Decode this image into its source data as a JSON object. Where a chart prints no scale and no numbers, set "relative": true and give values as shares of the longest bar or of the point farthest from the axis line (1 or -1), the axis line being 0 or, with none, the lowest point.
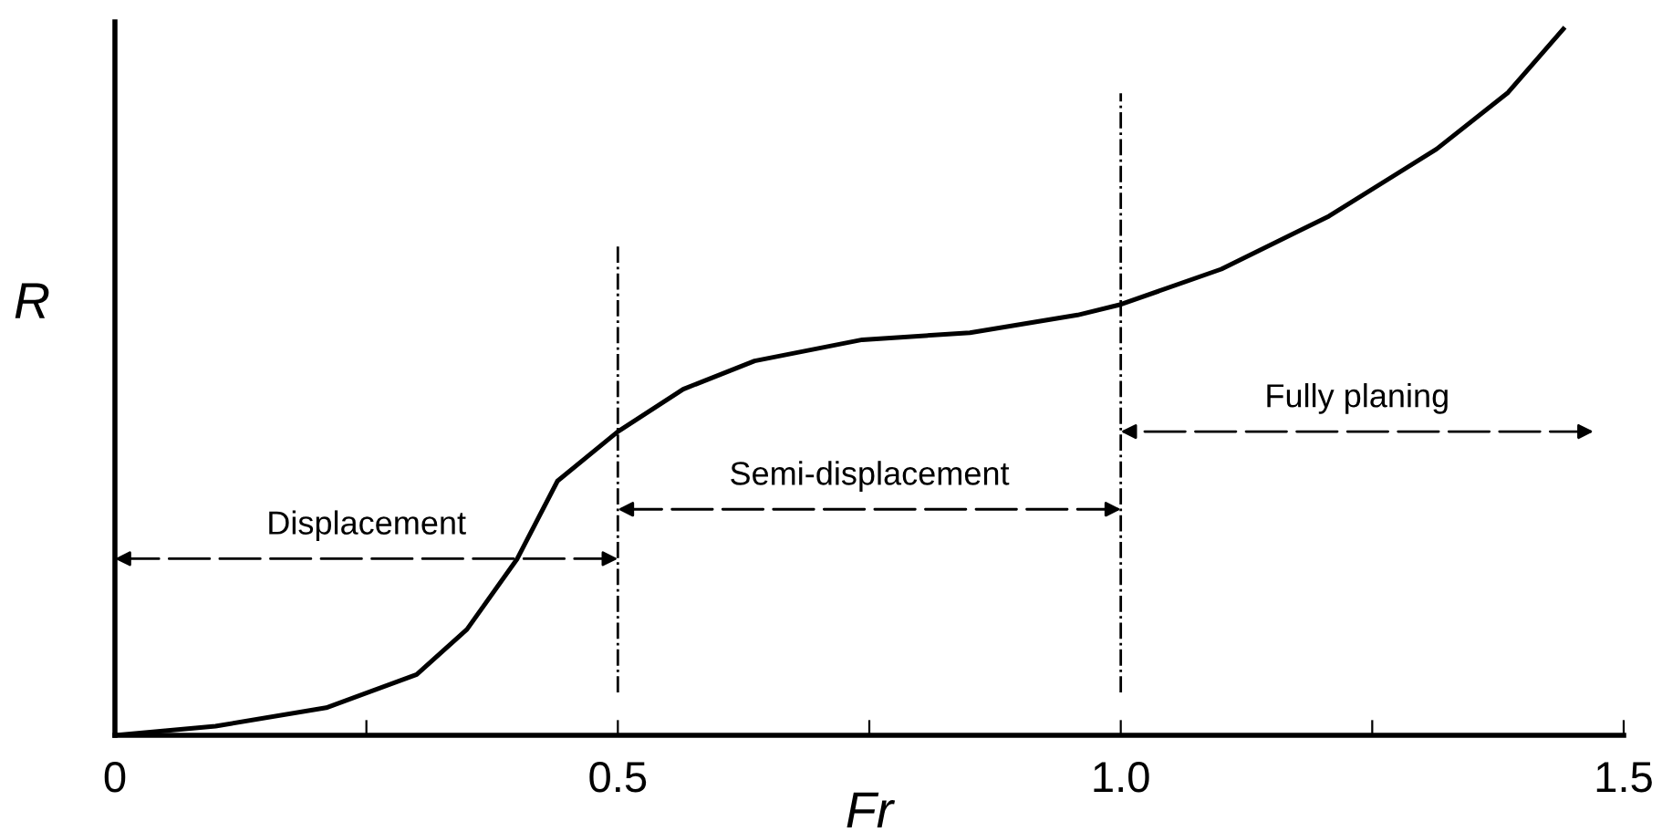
{
  "chart_data": {
    "type": "line",
    "relative": true,
    "xlabel": "Fr",
    "ylabel": "R",
    "x": [
      0,
      0.1,
      0.21,
      0.3,
      0.35,
      0.4,
      0.44,
      0.5,
      0.565,
      0.636,
      0.743,
      0.85,
      0.957,
      1.0,
      1.1,
      1.207,
      1.314,
      1.385,
      1.44
    ],
    "values": [
      0,
      0.013,
      0.039,
      0.086,
      0.15,
      0.25,
      0.36,
      0.43,
      0.49,
      0.53,
      0.56,
      0.57,
      0.595,
      0.61,
      0.66,
      0.735,
      0.83,
      0.91,
      1.0
    ],
    "color": "#000000",
    "marker": "none",
    "line_style": "solid",
    "xlim": [
      0,
      1.5
    ],
    "xticks": [
      0,
      {
        "value": 0.25,
        "label": null
      },
      0.5,
      {
        "value": 0.75,
        "label": null
      },
      {
        "value": 1.0,
        "label": "1.0"
      },
      {
        "value": 1.25,
        "label": null
      },
      1.5
    ],
    "ref_lines": [
      {
        "axis": "x",
        "value": 0.5,
        "line_style": "dashdot",
        "color": "#000000"
      },
      {
        "axis": "x",
        "value": 1.0,
        "line_style": "dashdot",
        "color": "#000000"
      }
    ],
    "annotations": [
      "Displacement",
      "Semi-displacement",
      "Fully planing"
    ],
    "grid": false,
    "legend": false
  }
}
